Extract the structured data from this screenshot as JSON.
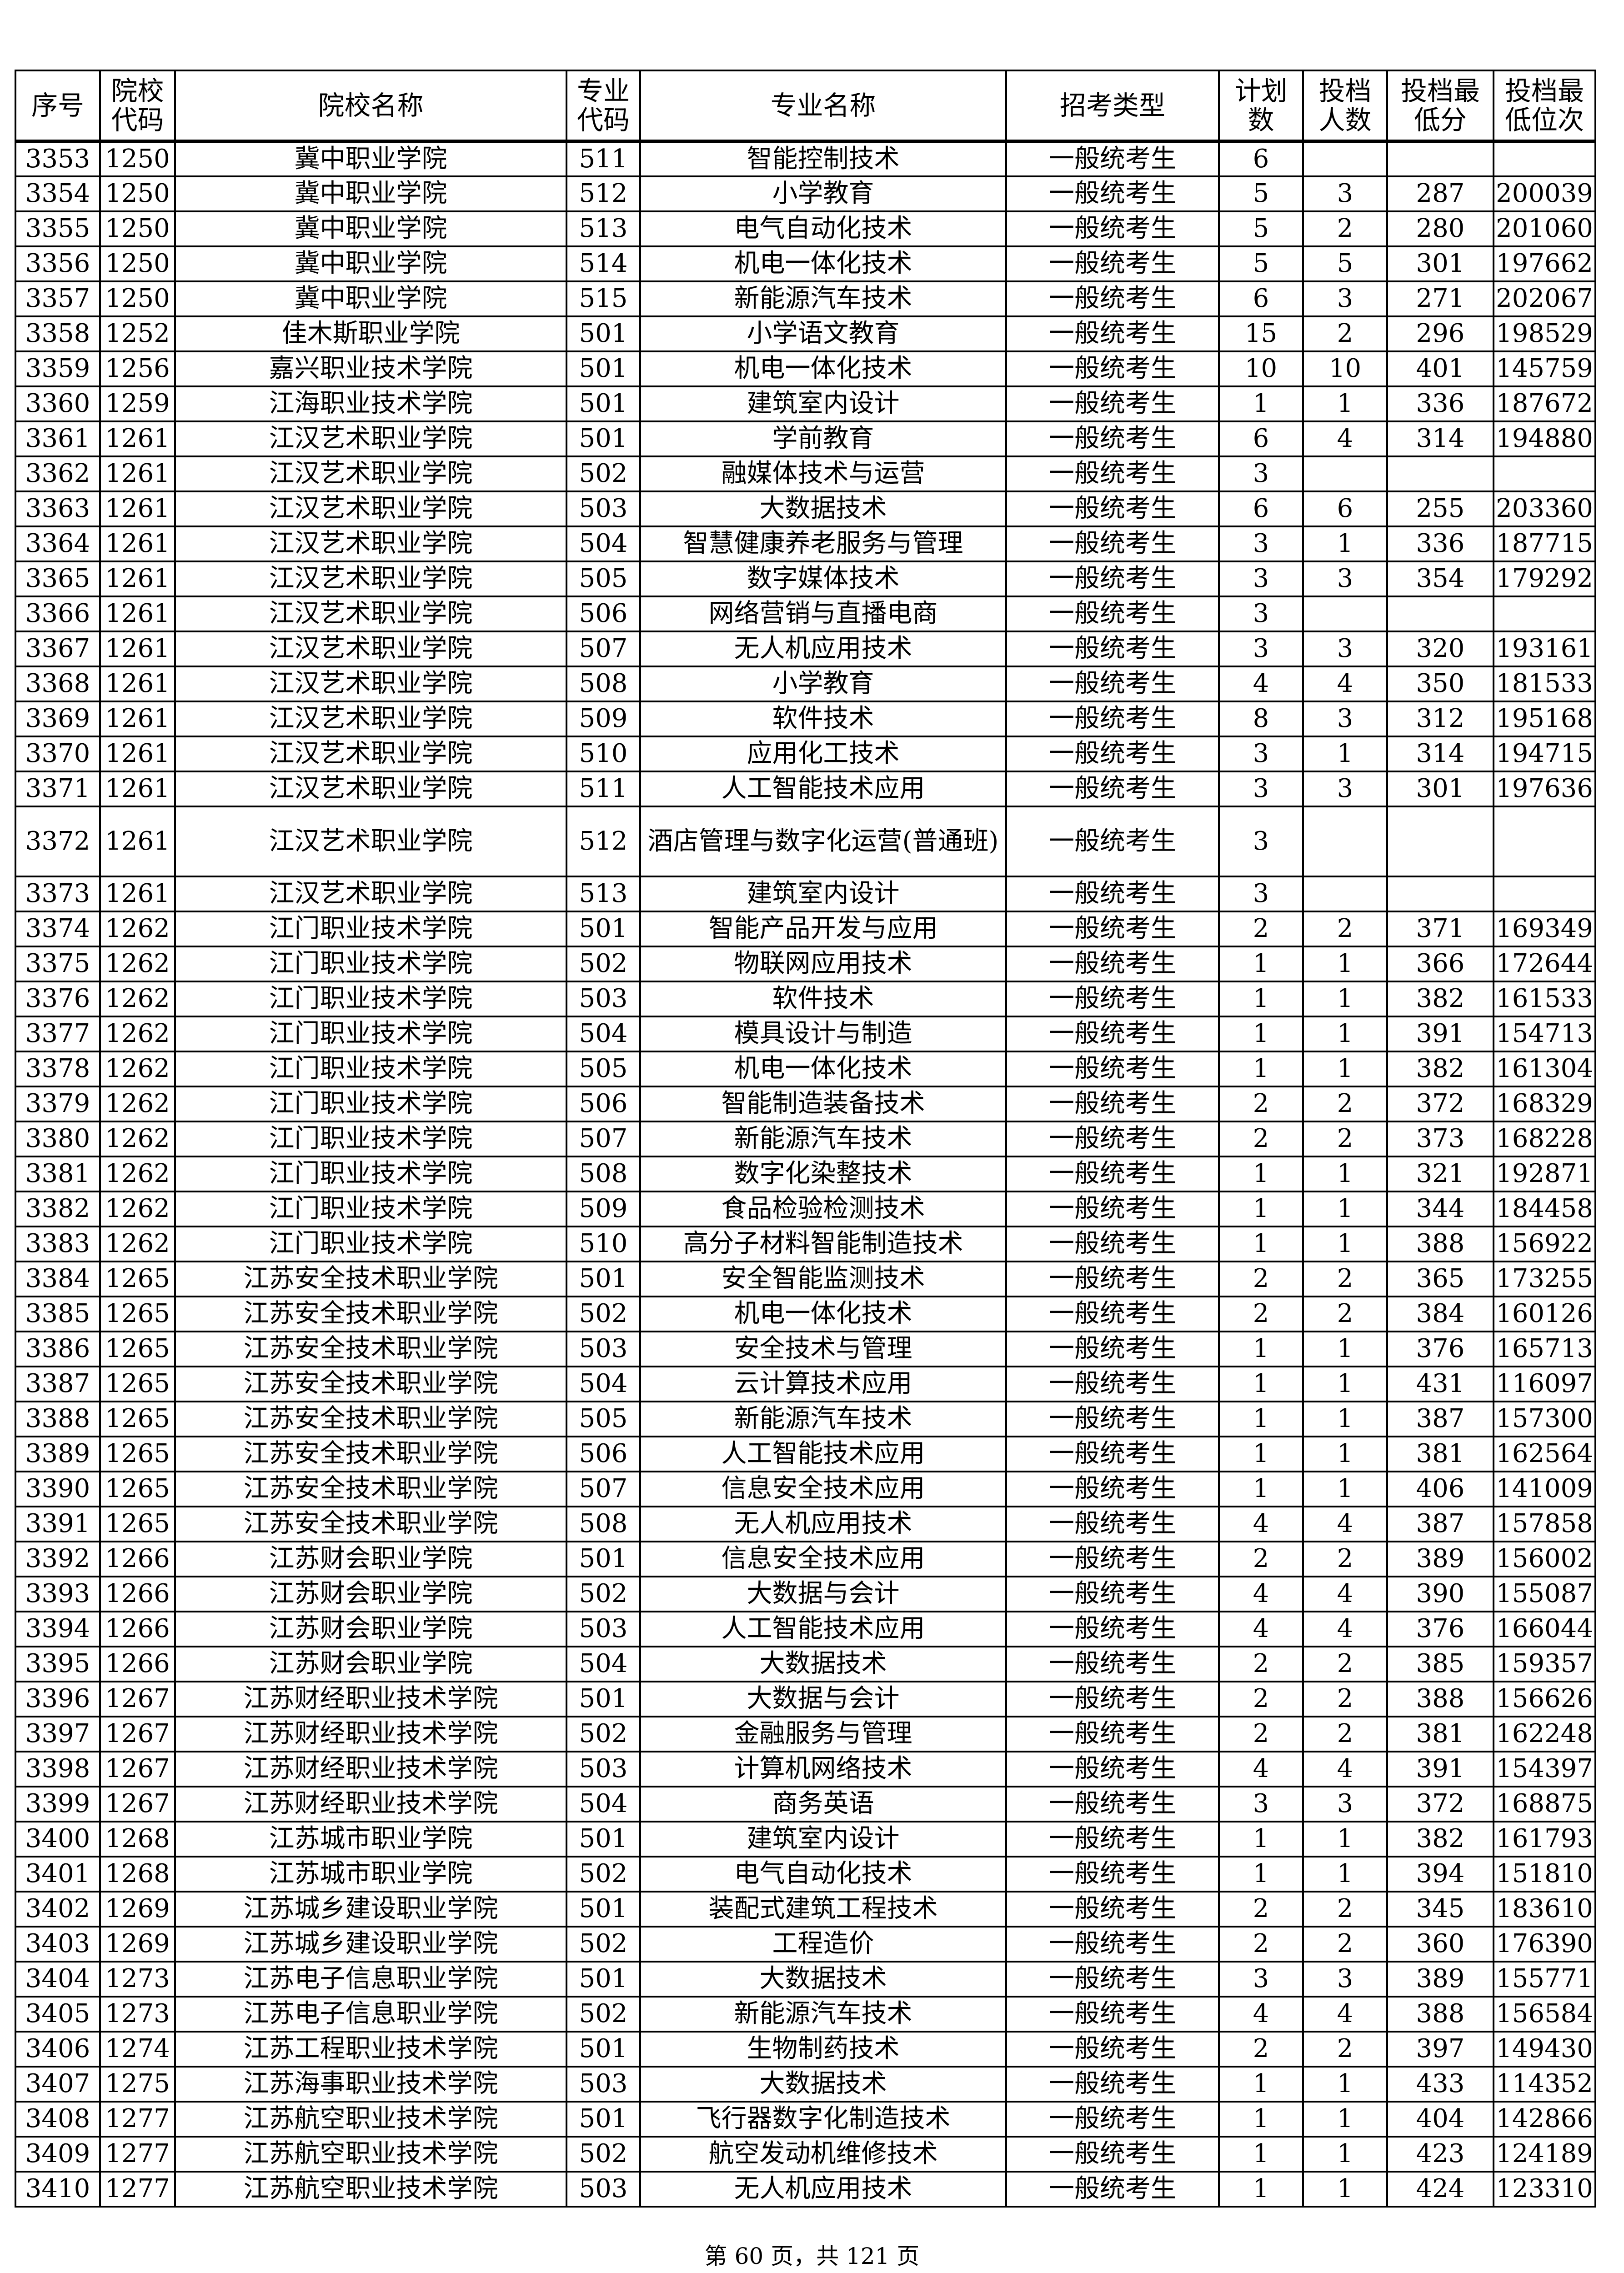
{
  "headers": [
    "序号",
    "院校代码",
    "院校名称",
    "专业代码",
    "专业名称",
    "招考类型",
    "计划数",
    "投档人数",
    "投档最低分",
    "投档最低位次"
  ],
  "header_lines": [
    [
      "序号"
    ],
    [
      "院校",
      "代码"
    ],
    [
      "院校名称"
    ],
    [
      "专业",
      "代码"
    ],
    [
      "专业名称"
    ],
    [
      "招考类型"
    ],
    [
      "计",
      "划数"
    ],
    [
      "投档",
      "人数"
    ],
    [
      "投档",
      "最低分"
    ],
    [
      "投档最",
      "低位次"
    ]
  ],
  "rows": [
    [
      "3353",
      "1250",
      "冀中职业学院",
      "511",
      "智能控制技术",
      "一般统考生",
      "6",
      "",
      "",
      ""
    ],
    [
      "3354",
      "1250",
      "冀中职业学院",
      "512",
      "小学教育",
      "一般统考生",
      "5",
      "3",
      "287",
      "200039"
    ],
    [
      "3355",
      "1250",
      "冀中职业学院",
      "513",
      "电气自动化技术",
      "一般统考生",
      "5",
      "2",
      "280",
      "201060"
    ],
    [
      "3356",
      "1250",
      "冀中职业学院",
      "514",
      "机电一体化技术",
      "一般统考生",
      "5",
      "5",
      "301",
      "197662"
    ],
    [
      "3357",
      "1250",
      "冀中职业学院",
      "515",
      "新能源汽车技术",
      "一般统考生",
      "6",
      "3",
      "271",
      "202067"
    ],
    [
      "3358",
      "1252",
      "佳木斯职业学院",
      "501",
      "小学语文教育",
      "一般统考生",
      "15",
      "2",
      "296",
      "198529"
    ],
    [
      "3359",
      "1256",
      "嘉兴职业技术学院",
      "501",
      "机电一体化技术",
      "一般统考生",
      "10",
      "10",
      "401",
      "145759"
    ],
    [
      "3360",
      "1259",
      "江海职业技术学院",
      "501",
      "建筑室内设计",
      "一般统考生",
      "1",
      "1",
      "336",
      "187672"
    ],
    [
      "3361",
      "1261",
      "江汉艺术职业学院",
      "501",
      "学前教育",
      "一般统考生",
      "6",
      "4",
      "314",
      "194880"
    ],
    [
      "3362",
      "1261",
      "江汉艺术职业学院",
      "502",
      "融媒体技术与运营",
      "一般统考生",
      "3",
      "",
      "",
      ""
    ],
    [
      "3363",
      "1261",
      "江汉艺术职业学院",
      "503",
      "大数据技术",
      "一般统考生",
      "6",
      "6",
      "255",
      "203360"
    ],
    [
      "3364",
      "1261",
      "江汉艺术职业学院",
      "504",
      "智慧健康养老服务与管理",
      "一般统考生",
      "3",
      "1",
      "336",
      "187715"
    ],
    [
      "3365",
      "1261",
      "江汉艺术职业学院",
      "505",
      "数字媒体技术",
      "一般统考生",
      "3",
      "3",
      "354",
      "179292"
    ],
    [
      "3366",
      "1261",
      "江汉艺术职业学院",
      "506",
      "网络营销与直播电商",
      "一般统考生",
      "3",
      "",
      "",
      ""
    ],
    [
      "3367",
      "1261",
      "江汉艺术职业学院",
      "507",
      "无人机应用技术",
      "一般统考生",
      "3",
      "3",
      "320",
      "193161"
    ],
    [
      "3368",
      "1261",
      "江汉艺术职业学院",
      "508",
      "小学教育",
      "一般统考生",
      "4",
      "4",
      "350",
      "181533"
    ],
    [
      "3369",
      "1261",
      "江汉艺术职业学院",
      "509",
      "软件技术",
      "一般统考生",
      "8",
      "3",
      "312",
      "195168"
    ],
    [
      "3370",
      "1261",
      "江汉艺术职业学院",
      "510",
      "应用化工技术",
      "一般统考生",
      "3",
      "1",
      "314",
      "194715"
    ],
    [
      "3371",
      "1261",
      "江汉艺术职业学院",
      "511",
      "人工智能技术应用",
      "一般统考生",
      "3",
      "3",
      "301",
      "197636"
    ],
    [
      "3372",
      "1261",
      "江汉艺术职业学院",
      "512",
      "酒店管理与数字化运营(普通班)",
      "一般统考生",
      "3",
      "",
      "",
      ""
    ],
    [
      "3373",
      "1261",
      "江汉艺术职业学院",
      "513",
      "建筑室内设计",
      "一般统考生",
      "3",
      "",
      "",
      ""
    ],
    [
      "3374",
      "1262",
      "江门职业技术学院",
      "501",
      "智能产品开发与应用",
      "一般统考生",
      "2",
      "2",
      "371",
      "169349"
    ],
    [
      "3375",
      "1262",
      "江门职业技术学院",
      "502",
      "物联网应用技术",
      "一般统考生",
      "1",
      "1",
      "366",
      "172644"
    ],
    [
      "3376",
      "1262",
      "江门职业技术学院",
      "503",
      "软件技术",
      "一般统考生",
      "1",
      "1",
      "382",
      "161533"
    ],
    [
      "3377",
      "1262",
      "江门职业技术学院",
      "504",
      "模具设计与制造",
      "一般统考生",
      "1",
      "1",
      "391",
      "154713"
    ],
    [
      "3378",
      "1262",
      "江门职业技术学院",
      "505",
      "机电一体化技术",
      "一般统考生",
      "1",
      "1",
      "382",
      "161304"
    ],
    [
      "3379",
      "1262",
      "江门职业技术学院",
      "506",
      "智能制造装备技术",
      "一般统考生",
      "2",
      "2",
      "372",
      "168329"
    ],
    [
      "3380",
      "1262",
      "江门职业技术学院",
      "507",
      "新能源汽车技术",
      "一般统考生",
      "2",
      "2",
      "373",
      "168228"
    ],
    [
      "3381",
      "1262",
      "江门职业技术学院",
      "508",
      "数字化染整技术",
      "一般统考生",
      "1",
      "1",
      "321",
      "192871"
    ],
    [
      "3382",
      "1262",
      "江门职业技术学院",
      "509",
      "食品检验检测技术",
      "一般统考生",
      "1",
      "1",
      "344",
      "184458"
    ],
    [
      "3383",
      "1262",
      "江门职业技术学院",
      "510",
      "高分子材料智能制造技术",
      "一般统考生",
      "1",
      "1",
      "388",
      "156922"
    ],
    [
      "3384",
      "1265",
      "江苏安全技术职业学院",
      "501",
      "安全智能监测技术",
      "一般统考生",
      "2",
      "2",
      "365",
      "173255"
    ],
    [
      "3385",
      "1265",
      "江苏安全技术职业学院",
      "502",
      "机电一体化技术",
      "一般统考生",
      "2",
      "2",
      "384",
      "160126"
    ],
    [
      "3386",
      "1265",
      "江苏安全技术职业学院",
      "503",
      "安全技术与管理",
      "一般统考生",
      "1",
      "1",
      "376",
      "165713"
    ],
    [
      "3387",
      "1265",
      "江苏安全技术职业学院",
      "504",
      "云计算技术应用",
      "一般统考生",
      "1",
      "1",
      "431",
      "116097"
    ],
    [
      "3388",
      "1265",
      "江苏安全技术职业学院",
      "505",
      "新能源汽车技术",
      "一般统考生",
      "1",
      "1",
      "387",
      "157300"
    ],
    [
      "3389",
      "1265",
      "江苏安全技术职业学院",
      "506",
      "人工智能技术应用",
      "一般统考生",
      "1",
      "1",
      "381",
      "162564"
    ],
    [
      "3390",
      "1265",
      "江苏安全技术职业学院",
      "507",
      "信息安全技术应用",
      "一般统考生",
      "1",
      "1",
      "406",
      "141009"
    ],
    [
      "3391",
      "1265",
      "江苏安全技术职业学院",
      "508",
      "无人机应用技术",
      "一般统考生",
      "4",
      "4",
      "387",
      "157858"
    ],
    [
      "3392",
      "1266",
      "江苏财会职业学院",
      "501",
      "信息安全技术应用",
      "一般统考生",
      "2",
      "2",
      "389",
      "156002"
    ],
    [
      "3393",
      "1266",
      "江苏财会职业学院",
      "502",
      "大数据与会计",
      "一般统考生",
      "4",
      "4",
      "390",
      "155087"
    ],
    [
      "3394",
      "1266",
      "江苏财会职业学院",
      "503",
      "人工智能技术应用",
      "一般统考生",
      "4",
      "4",
      "376",
      "166044"
    ],
    [
      "3395",
      "1266",
      "江苏财会职业学院",
      "504",
      "大数据技术",
      "一般统考生",
      "2",
      "2",
      "385",
      "159357"
    ],
    [
      "3396",
      "1267",
      "江苏财经职业技术学院",
      "501",
      "大数据与会计",
      "一般统考生",
      "2",
      "2",
      "388",
      "156626"
    ],
    [
      "3397",
      "1267",
      "江苏财经职业技术学院",
      "502",
      "金融服务与管理",
      "一般统考生",
      "2",
      "2",
      "381",
      "162248"
    ],
    [
      "3398",
      "1267",
      "江苏财经职业技术学院",
      "503",
      "计算机网络技术",
      "一般统考生",
      "4",
      "4",
      "391",
      "154397"
    ],
    [
      "3399",
      "1267",
      "江苏财经职业技术学院",
      "504",
      "商务英语",
      "一般统考生",
      "3",
      "3",
      "372",
      "168875"
    ],
    [
      "3400",
      "1268",
      "江苏城市职业学院",
      "501",
      "建筑室内设计",
      "一般统考生",
      "1",
      "1",
      "382",
      "161793"
    ],
    [
      "3401",
      "1268",
      "江苏城市职业学院",
      "502",
      "电气自动化技术",
      "一般统考生",
      "1",
      "1",
      "394",
      "151810"
    ],
    [
      "3402",
      "1269",
      "江苏城乡建设职业学院",
      "501",
      "装配式建筑工程技术",
      "一般统考生",
      "2",
      "2",
      "345",
      "183610"
    ],
    [
      "3403",
      "1269",
      "江苏城乡建设职业学院",
      "502",
      "工程造价",
      "一般统考生",
      "2",
      "2",
      "360",
      "176390"
    ],
    [
      "3404",
      "1273",
      "江苏电子信息职业学院",
      "501",
      "大数据技术",
      "一般统考生",
      "3",
      "3",
      "389",
      "155771"
    ],
    [
      "3405",
      "1273",
      "江苏电子信息职业学院",
      "502",
      "新能源汽车技术",
      "一般统考生",
      "4",
      "4",
      "388",
      "156584"
    ],
    [
      "3406",
      "1274",
      "江苏工程职业技术学院",
      "501",
      "生物制药技术",
      "一般统考生",
      "2",
      "2",
      "397",
      "149430"
    ],
    [
      "3407",
      "1275",
      "江苏海事职业技术学院",
      "503",
      "大数据技术",
      "一般统考生",
      "1",
      "1",
      "433",
      "114352"
    ],
    [
      "3408",
      "1277",
      "江苏航空职业技术学院",
      "501",
      "飞行器数字化制造技术",
      "一般统考生",
      "1",
      "1",
      "404",
      "142866"
    ],
    [
      "3409",
      "1277",
      "江苏航空职业技术学院",
      "502",
      "航空发动机维修技术",
      "一般统考生",
      "1",
      "1",
      "423",
      "124189"
    ],
    [
      "3410",
      "1277",
      "江苏航空职业技术学院",
      "503",
      "无人机应用技术",
      "一般统考生",
      "1",
      "1",
      "424",
      "123310"
    ]
  ],
  "footer": "第 60 页，共 121 页"
}
